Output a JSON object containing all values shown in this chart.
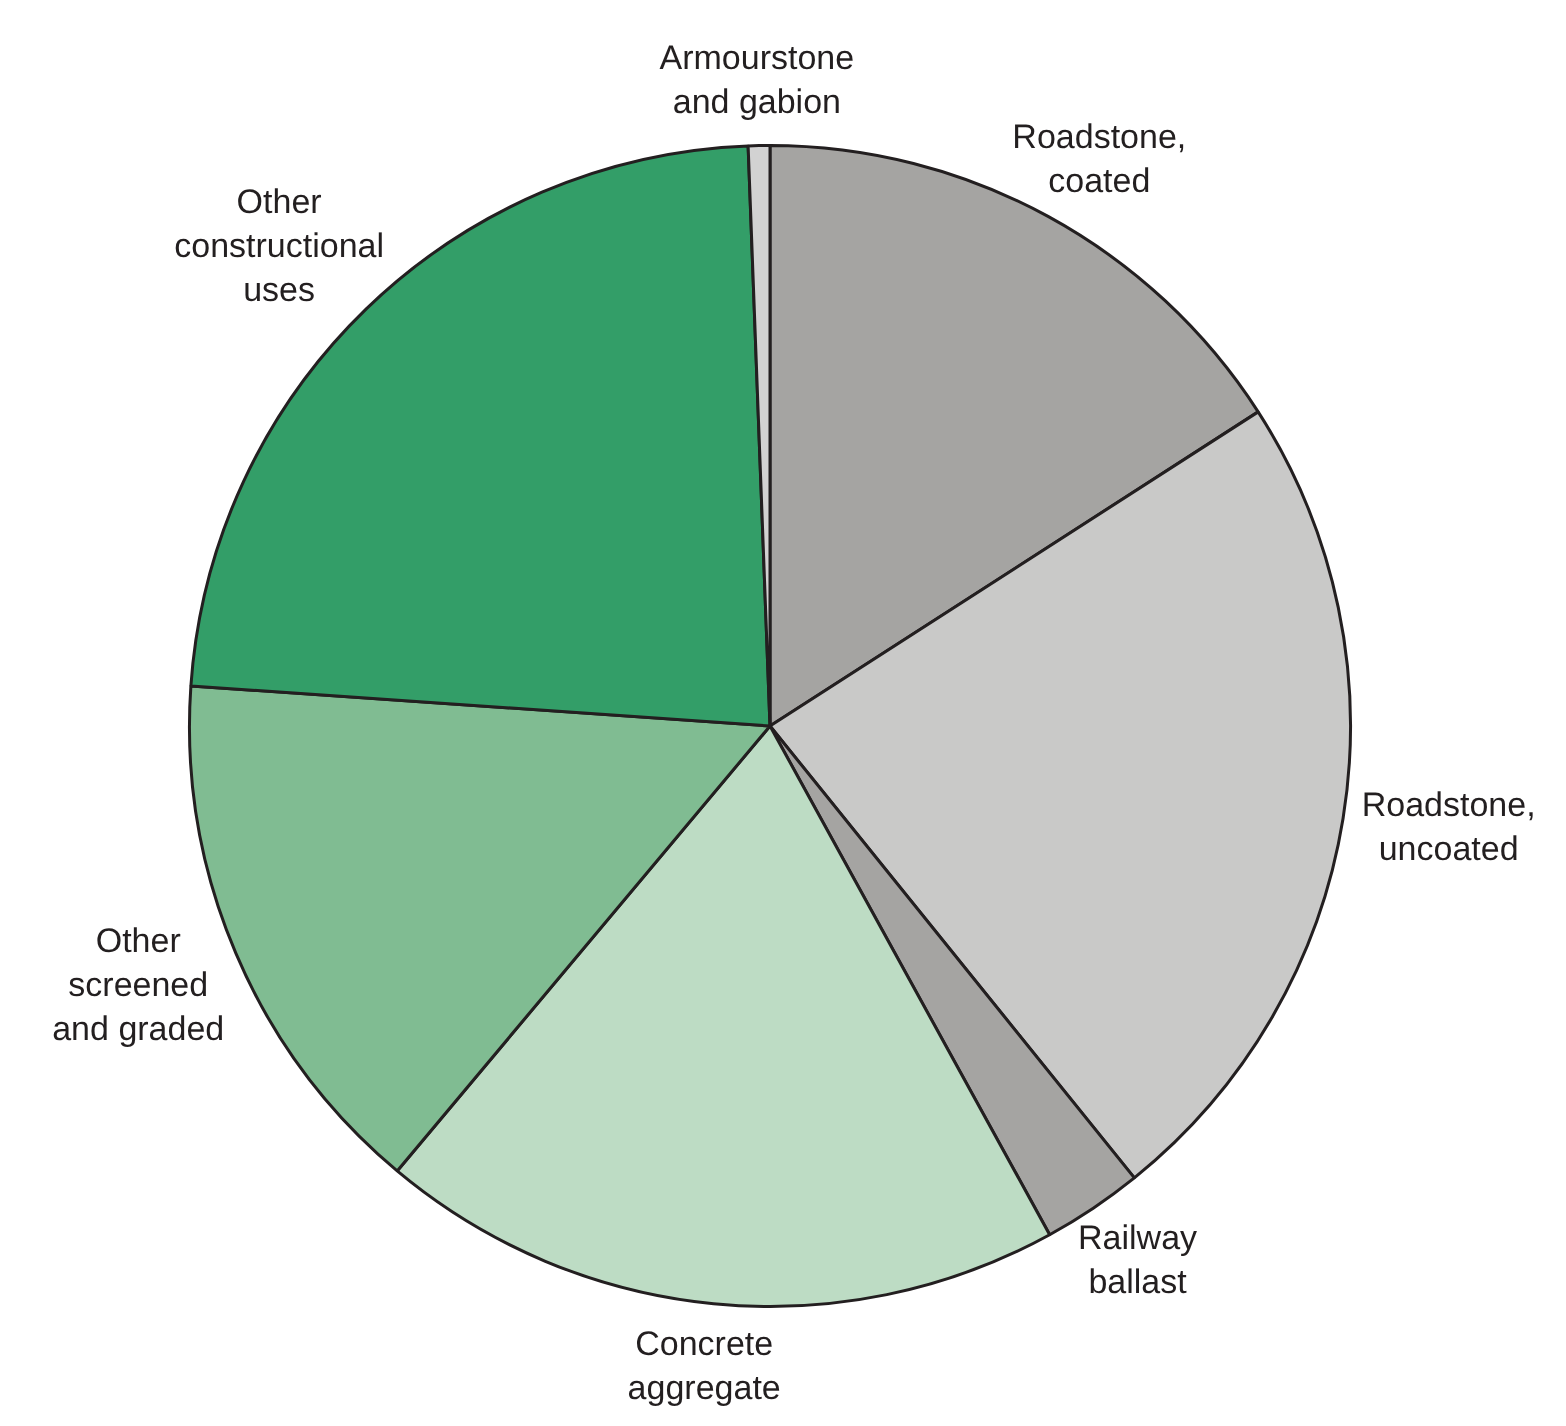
{
  "chart_data": {
    "type": "pie",
    "categories": [
      "Roadstone, coated",
      "Roadstone, uncoated",
      "Railway ballast",
      "Concrete aggregate",
      "Other screened and graded",
      "Other constructional uses",
      "Armourstone and gabion"
    ],
    "values": [
      15.9,
      23.3,
      2.8,
      19.1,
      15.0,
      23.3,
      0.6
    ],
    "colors": [
      "#a5a4a2",
      "#c9c9c8",
      "#a5a4a2",
      "#bddcc4",
      "#80bc92",
      "#339e68",
      "#d2d2d2"
    ],
    "legend": false
  }
}
